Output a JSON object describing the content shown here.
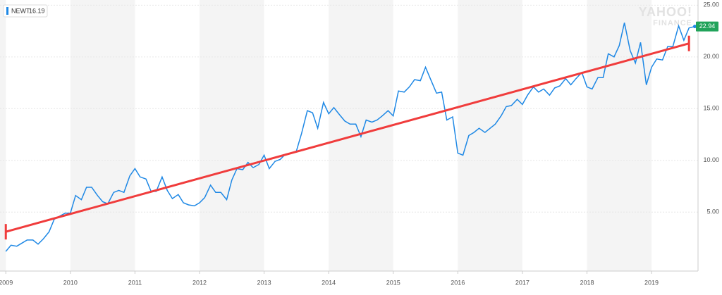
{
  "chart_data": {
    "type": "line",
    "legend_value": 16.19,
    "watermark": [
      "YAHOO!",
      "FINANCE"
    ],
    "series": [
      {
        "name": "NEWT",
        "color": "#1e88e5",
        "x": [
          2009,
          2009.08,
          2009.17,
          2009.25,
          2009.33,
          2009.42,
          2009.5,
          2009.58,
          2009.67,
          2009.75,
          2009.83,
          2009.92,
          2010,
          2010.08,
          2010.17,
          2010.25,
          2010.33,
          2010.42,
          2010.5,
          2010.58,
          2010.67,
          2010.75,
          2010.83,
          2010.92,
          2011,
          2011.08,
          2011.17,
          2011.25,
          2011.33,
          2011.42,
          2011.5,
          2011.58,
          2011.67,
          2011.75,
          2011.83,
          2011.92,
          2012,
          2012.08,
          2012.17,
          2012.25,
          2012.33,
          2012.42,
          2012.5,
          2012.58,
          2012.67,
          2012.75,
          2012.83,
          2012.92,
          2013,
          2013.08,
          2013.17,
          2013.25,
          2013.33,
          2013.42,
          2013.5,
          2013.58,
          2013.67,
          2013.75,
          2013.83,
          2013.92,
          2014,
          2014.08,
          2014.17,
          2014.25,
          2014.33,
          2014.42,
          2014.5,
          2014.58,
          2014.67,
          2014.75,
          2014.83,
          2014.92,
          2015,
          2015.08,
          2015.17,
          2015.25,
          2015.33,
          2015.42,
          2015.5,
          2015.58,
          2015.67,
          2015.75,
          2015.83,
          2015.92,
          2016,
          2016.08,
          2016.17,
          2016.25,
          2016.33,
          2016.42,
          2016.5,
          2016.58,
          2016.67,
          2016.75,
          2016.83,
          2016.92,
          2017,
          2017.08,
          2017.17,
          2017.25,
          2017.33,
          2017.42,
          2017.5,
          2017.58,
          2017.67,
          2017.75,
          2017.83,
          2017.92,
          2018,
          2018.08,
          2018.17,
          2018.25,
          2018.33,
          2018.42,
          2018.5,
          2018.58,
          2018.67,
          2018.75,
          2018.83,
          2018.92,
          2019,
          2019.08,
          2019.17,
          2019.25,
          2019.33,
          2019.42,
          2019.5,
          2019.58,
          2019.67
        ],
        "values": [
          1.2,
          1.8,
          1.7,
          2.0,
          2.3,
          2.3,
          1.9,
          2.4,
          3.1,
          4.3,
          4.6,
          4.9,
          4.9,
          6.6,
          6.2,
          7.4,
          7.4,
          6.6,
          6.0,
          5.8,
          6.9,
          7.1,
          6.9,
          8.5,
          9.2,
          8.4,
          8.2,
          7.0,
          7.0,
          8.4,
          7.1,
          6.3,
          6.7,
          5.9,
          5.7,
          5.6,
          5.9,
          6.4,
          7.6,
          6.9,
          6.9,
          6.2,
          8.1,
          9.2,
          9.1,
          9.8,
          9.3,
          9.6,
          10.5,
          9.2,
          9.9,
          10.1,
          10.6,
          10.7,
          10.9,
          12.6,
          14.8,
          14.6,
          13.1,
          15.6,
          14.5,
          15.1,
          14.4,
          13.8,
          13.5,
          13.5,
          12.3,
          13.9,
          13.7,
          13.9,
          14.3,
          14.8,
          14.3,
          16.7,
          16.6,
          17.1,
          17.8,
          17.7,
          19.0,
          17.8,
          16.5,
          16.6,
          13.9,
          14.2,
          10.7,
          10.5,
          12.4,
          12.7,
          13.1,
          12.7,
          13.1,
          13.5,
          14.3,
          15.2,
          15.3,
          15.9,
          15.4,
          16.3,
          17.1,
          16.6,
          16.9,
          16.3,
          17.0,
          17.2,
          17.9,
          17.3,
          17.9,
          18.5,
          17.1,
          16.9,
          18.0,
          18.0,
          20.3,
          20.0,
          21.1,
          23.3,
          20.6,
          19.4,
          21.4,
          17.3,
          19.0,
          19.8,
          19.7,
          21.0,
          21.0,
          23.0,
          21.6,
          22.8,
          22.94
        ]
      }
    ],
    "trendline": {
      "color": "#f03c3c",
      "x": [
        2009,
        2019.58
      ],
      "values": [
        3.1,
        21.3
      ]
    },
    "last_color": "#21a35a",
    "xlim": [
      2008.91,
      2019.72
    ],
    "xticks": [
      2009,
      2010,
      2011,
      2012,
      2013,
      2014,
      2015,
      2016,
      2017,
      2018,
      2019
    ],
    "ylim": [
      -0.7,
      25.5
    ],
    "yticks": [
      {
        "value": 5,
        "label": "5.00"
      },
      {
        "value": 10,
        "label": "10.00"
      },
      {
        "value": 15,
        "label": "15.00"
      },
      {
        "value": 20,
        "label": "20.00"
      },
      {
        "value": 25,
        "label": "25.00"
      }
    ],
    "grid": true
  }
}
